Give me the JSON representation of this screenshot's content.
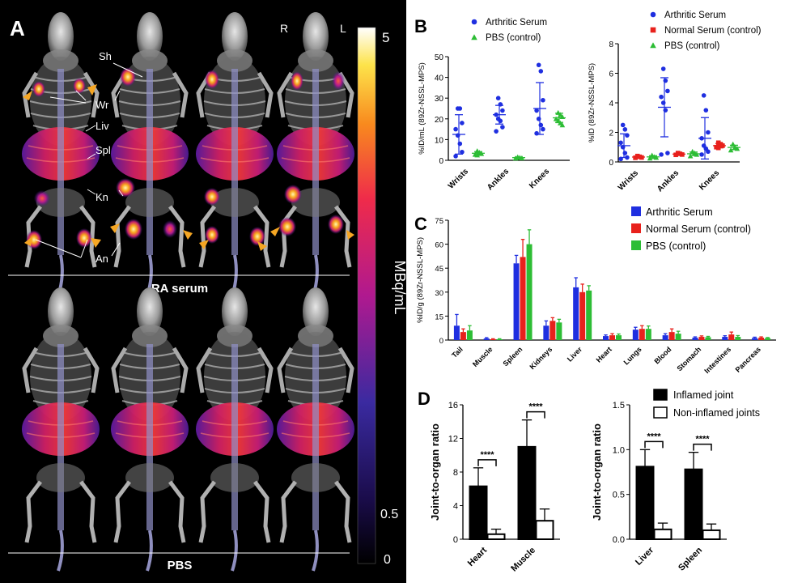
{
  "panel_labels": {
    "a": "A",
    "b": "B",
    "c": "C",
    "d": "D"
  },
  "panel_a": {
    "side_right": "R",
    "side_left": "L",
    "top_label": "RA serum",
    "bottom_label": "PBS",
    "annotations": [
      "Sh",
      "Wr",
      "Liv",
      "Spl",
      "Kn",
      "An"
    ],
    "colorbar": {
      "max": "5",
      "mid": "0.5",
      "min": "0",
      "unit": "MBq/mL"
    }
  },
  "colors": {
    "arthritic": "#1f2fe0",
    "normal": "#e8211c",
    "pbs": "#2dbd35",
    "arrow": "#f5a623",
    "inflamed": "#000000"
  },
  "chart_data": [
    {
      "id": "B1",
      "type": "scatter",
      "ylabel": "%ID/mL (89Zr-NSSL-MPS)",
      "categories": [
        "Wrists",
        "Ankles",
        "Knees"
      ],
      "ylim": [
        0,
        50
      ],
      "yticks": [
        0,
        10,
        20,
        30,
        40,
        50
      ],
      "series": [
        {
          "name": "Arthritic Serum",
          "color": "#1f2fe0",
          "marker": "circle",
          "points": [
            [
              0,
              25
            ],
            [
              0,
              25
            ],
            [
              0,
              18
            ],
            [
              0,
              15
            ],
            [
              0,
              12
            ],
            [
              0,
              8
            ],
            [
              0,
              4
            ],
            [
              0,
              2
            ],
            [
              1,
              30
            ],
            [
              1,
              27
            ],
            [
              1,
              24
            ],
            [
              1,
              22
            ],
            [
              1,
              20
            ],
            [
              1,
              19
            ],
            [
              1,
              16
            ],
            [
              1,
              14
            ],
            [
              2,
              46
            ],
            [
              2,
              43
            ],
            [
              2,
              29
            ],
            [
              2,
              24
            ],
            [
              2,
              20
            ],
            [
              2,
              17
            ],
            [
              2,
              15
            ],
            [
              2,
              13
            ]
          ],
          "mean": [
            12.5,
            22,
            25
          ],
          "sd": [
            9.5,
            4.5,
            12.5
          ]
        },
        {
          "name": "PBS (control)",
          "color": "#2dbd35",
          "marker": "triangle",
          "points": [
            [
              0,
              4.5
            ],
            [
              0,
              3.8
            ],
            [
              0,
              3.2
            ],
            [
              0,
              2.8
            ],
            [
              0,
              2.5
            ],
            [
              1,
              1.6
            ],
            [
              1,
              1.3
            ],
            [
              1,
              1.1
            ],
            [
              1,
              1.0
            ],
            [
              2,
              23
            ],
            [
              2,
              22
            ],
            [
              2,
              21
            ],
            [
              2,
              20
            ],
            [
              2,
              19
            ],
            [
              2,
              18
            ],
            [
              2,
              17
            ]
          ],
          "mean": [
            3.4,
            1.3,
            20.5
          ],
          "sd": [
            0.8,
            0.3,
            2.2
          ]
        }
      ]
    },
    {
      "id": "B2",
      "type": "scatter",
      "ylabel": "%ID (89Zr-NSSL-MPS)",
      "categories": [
        "Wrists",
        "Ankles",
        "Knees"
      ],
      "ylim": [
        0,
        8
      ],
      "yticks": [
        0,
        2,
        4,
        6,
        8
      ],
      "series": [
        {
          "name": "Arthritic Serum",
          "color": "#1f2fe0",
          "marker": "circle",
          "points": [
            [
              0,
              2.5
            ],
            [
              0,
              2.2
            ],
            [
              0,
              1.8
            ],
            [
              0,
              1.3
            ],
            [
              0,
              1.0
            ],
            [
              0,
              0.6
            ],
            [
              0,
              0.3
            ],
            [
              0,
              0.2
            ],
            [
              1,
              6.3
            ],
            [
              1,
              5.5
            ],
            [
              1,
              4.8
            ],
            [
              1,
              4.4
            ],
            [
              1,
              4.0
            ],
            [
              1,
              3.5
            ],
            [
              1,
              0.6
            ],
            [
              1,
              0.5
            ],
            [
              2,
              4.5
            ],
            [
              2,
              3.5
            ],
            [
              2,
              2.0
            ],
            [
              2,
              1.6
            ],
            [
              2,
              1.1
            ],
            [
              2,
              0.9
            ],
            [
              2,
              0.7
            ],
            [
              2,
              0.5
            ]
          ],
          "mean": [
            1.1,
            3.7,
            1.6
          ],
          "sd": [
            0.8,
            2.0,
            1.4
          ]
        },
        {
          "name": "Normal Serum (control)",
          "color": "#e8211c",
          "marker": "square",
          "points": [
            [
              0,
              0.4
            ],
            [
              0,
              0.35
            ],
            [
              0,
              0.3
            ],
            [
              0,
              0.28
            ],
            [
              1,
              0.6
            ],
            [
              1,
              0.55
            ],
            [
              1,
              0.5
            ],
            [
              1,
              0.48
            ],
            [
              2,
              1.3
            ],
            [
              2,
              1.2
            ],
            [
              2,
              1.1
            ],
            [
              2,
              1.0
            ],
            [
              2,
              0.95
            ]
          ],
          "mean": [
            0.33,
            0.53,
            1.1
          ],
          "sd": [
            0.06,
            0.06,
            0.15
          ]
        },
        {
          "name": "PBS (control)",
          "color": "#2dbd35",
          "marker": "triangle",
          "points": [
            [
              0,
              0.45
            ],
            [
              0,
              0.35
            ],
            [
              0,
              0.3
            ],
            [
              0,
              0.25
            ],
            [
              1,
              0.7
            ],
            [
              1,
              0.6
            ],
            [
              1,
              0.5
            ],
            [
              1,
              0.4
            ],
            [
              2,
              1.2
            ],
            [
              2,
              1.0
            ],
            [
              2,
              0.9
            ],
            [
              2,
              0.8
            ]
          ],
          "mean": [
            0.34,
            0.55,
            0.98
          ],
          "sd": [
            0.08,
            0.12,
            0.15
          ]
        }
      ]
    },
    {
      "id": "C",
      "type": "bar",
      "ylabel": "%ID/g (89Zr-NSSL-MPS)",
      "categories": [
        "Tail",
        "Muscle",
        "Spleen",
        "Kidneys",
        "Liver",
        "Heart",
        "Lungs",
        "Blood",
        "Stomach",
        "Intestines",
        "Pancreas"
      ],
      "ylim": [
        0,
        75
      ],
      "yticks": [
        0,
        15,
        30,
        45,
        60,
        75
      ],
      "series": [
        {
          "name": "Arthritic Serum",
          "color": "#1f2fe0",
          "values": [
            9,
            1,
            48,
            9,
            33,
            2.5,
            6.5,
            3,
            1.5,
            2,
            1.3
          ],
          "errors": [
            7,
            0.5,
            5,
            3,
            6,
            0.7,
            1.5,
            1,
            0.5,
            0.7,
            0.5
          ]
        },
        {
          "name": "Normal Serum (control)",
          "color": "#e8211c",
          "values": [
            5,
            0.5,
            52,
            12,
            30,
            3,
            7,
            5,
            2,
            3.5,
            1.5
          ],
          "errors": [
            2,
            0.3,
            11,
            2,
            5,
            1,
            2,
            2,
            0.6,
            1.5,
            0.5
          ]
        },
        {
          "name": "PBS (control)",
          "color": "#2dbd35",
          "values": [
            6,
            0.5,
            60,
            11,
            31,
            3,
            7,
            4,
            1.8,
            2,
            1.2
          ],
          "errors": [
            3,
            0.3,
            9,
            2,
            3,
            0.8,
            1.8,
            1.5,
            0.5,
            0.8,
            0.4
          ]
        }
      ]
    },
    {
      "id": "D1",
      "type": "bar",
      "ylabel": "Joint-to-organ ratio",
      "categories": [
        "Heart",
        "Muscle"
      ],
      "ylim": [
        0,
        16
      ],
      "yticks": [
        0,
        4,
        8,
        12,
        16
      ],
      "significance": [
        "****",
        "****"
      ],
      "series": [
        {
          "name": "Inflamed joint",
          "values": [
            6.3,
            11
          ],
          "errors": [
            2.2,
            3.2
          ]
        },
        {
          "name": "Non-inflamed joints",
          "values": [
            0.6,
            2.2
          ],
          "errors": [
            0.6,
            1.4
          ]
        }
      ]
    },
    {
      "id": "D2",
      "type": "bar",
      "ylabel": "Joint-to-organ ratio",
      "categories": [
        "Liver",
        "Spleen"
      ],
      "ylim": [
        0,
        1.5
      ],
      "yticks": [
        "0.0",
        "0.5",
        "1.0",
        "1.5"
      ],
      "significance": [
        "****",
        "****"
      ],
      "series": [
        {
          "name": "Inflamed joint",
          "values": [
            0.81,
            0.78
          ],
          "errors": [
            0.19,
            0.19
          ]
        },
        {
          "name": "Non-inflamed joints",
          "values": [
            0.11,
            0.1
          ],
          "errors": [
            0.07,
            0.07
          ]
        }
      ]
    }
  ]
}
